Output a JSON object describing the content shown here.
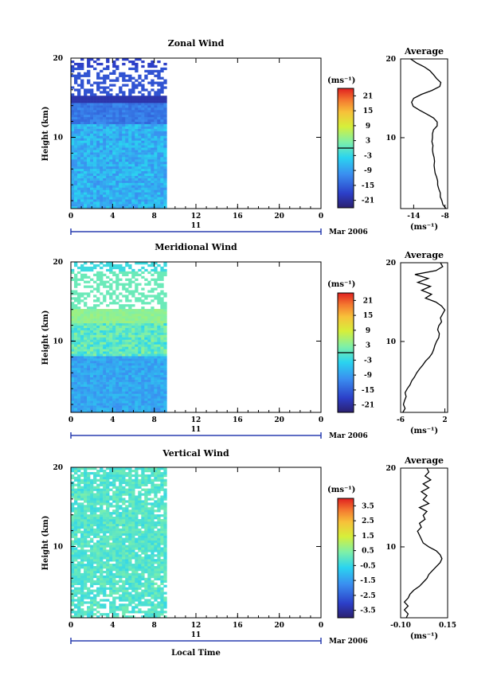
{
  "chart_data": [
    {
      "type": "heatmap",
      "title": "Zonal Wind",
      "ylabel": "Height (km)",
      "xlabel": "",
      "xlim": [
        0,
        24
      ],
      "ylim": [
        1,
        20
      ],
      "x_ticks": [
        "0",
        "4",
        "8",
        "12",
        "16",
        "20",
        "0"
      ],
      "y_ticks": [
        "10",
        "20"
      ],
      "date_day": "11",
      "date_label": "Mar 2006",
      "data_x_range": [
        0,
        9.2
      ],
      "colorbar": {
        "unit": "(ms⁻¹)",
        "range": [
          -24,
          24
        ],
        "ticks": [
          "21",
          "15",
          "9",
          "3",
          "-3",
          "-9",
          "-15",
          "-21"
        ],
        "zero_line": true
      },
      "average": {
        "title": "Average",
        "xlabel": "(ms⁻¹)",
        "x_ticks": [
          "-14",
          "-8"
        ],
        "xlim": [
          -16.5,
          -7.5
        ],
        "y_ticks": [
          "10",
          "20"
        ],
        "profile": [
          [
            1.0,
            -7.8
          ],
          [
            1.5,
            -8.4
          ],
          [
            2.0,
            -8.6
          ],
          [
            2.5,
            -8.9
          ],
          [
            3.0,
            -8.9
          ],
          [
            3.5,
            -9.2
          ],
          [
            4.0,
            -9.4
          ],
          [
            4.5,
            -9.4
          ],
          [
            5.0,
            -9.6
          ],
          [
            5.5,
            -9.9
          ],
          [
            6.0,
            -10.0
          ],
          [
            6.5,
            -10.1
          ],
          [
            7.0,
            -10.0
          ],
          [
            7.5,
            -10.1
          ],
          [
            8.0,
            -10.3
          ],
          [
            8.5,
            -10.4
          ],
          [
            9.0,
            -10.3
          ],
          [
            9.5,
            -10.5
          ],
          [
            10.0,
            -10.4
          ],
          [
            10.5,
            -10.4
          ],
          [
            11.0,
            -10.2
          ],
          [
            11.5,
            -9.5
          ],
          [
            12.0,
            -9.5
          ],
          [
            12.5,
            -10.2
          ],
          [
            13.0,
            -11.5
          ],
          [
            13.5,
            -12.9
          ],
          [
            14.0,
            -14.1
          ],
          [
            14.5,
            -14.4
          ],
          [
            15.0,
            -14.0
          ],
          [
            15.5,
            -12.5
          ],
          [
            16.0,
            -10.5
          ],
          [
            16.5,
            -9.0
          ],
          [
            17.0,
            -8.8
          ],
          [
            17.5,
            -9.6
          ],
          [
            18.0,
            -10.2
          ],
          [
            18.5,
            -10.9
          ],
          [
            19.0,
            -12.0
          ],
          [
            19.5,
            -13.5
          ],
          [
            20.0,
            -14.6
          ]
        ]
      }
    },
    {
      "type": "heatmap",
      "title": "Meridional Wind",
      "ylabel": "Height (km)",
      "xlabel": "",
      "xlim": [
        0,
        24
      ],
      "ylim": [
        1,
        20
      ],
      "x_ticks": [
        "0",
        "4",
        "8",
        "12",
        "16",
        "20",
        "0"
      ],
      "y_ticks": [
        "10",
        "20"
      ],
      "date_day": "11",
      "date_label": "Mar 2006",
      "data_x_range": [
        0,
        9.2
      ],
      "colorbar": {
        "unit": "(ms⁻¹)",
        "range": [
          -24,
          24
        ],
        "ticks": [
          "21",
          "15",
          "9",
          "3",
          "-3",
          "-9",
          "-15",
          "-21"
        ],
        "zero_line": true
      },
      "average": {
        "title": "Average",
        "xlabel": "(ms⁻¹)",
        "x_ticks": [
          "-6",
          "2"
        ],
        "xlim": [
          -6,
          2.5
        ],
        "y_ticks": [
          "10",
          "20"
        ],
        "profile": [
          [
            1.0,
            -5.6
          ],
          [
            1.5,
            -5.2
          ],
          [
            2.0,
            -5.5
          ],
          [
            2.5,
            -5.3
          ],
          [
            3.0,
            -5.0
          ],
          [
            3.5,
            -5.2
          ],
          [
            4.0,
            -4.8
          ],
          [
            4.5,
            -4.3
          ],
          [
            5.0,
            -4.0
          ],
          [
            5.5,
            -3.5
          ],
          [
            6.0,
            -3.1
          ],
          [
            6.5,
            -2.6
          ],
          [
            7.0,
            -2.0
          ],
          [
            7.5,
            -1.5
          ],
          [
            8.0,
            -0.8
          ],
          [
            8.5,
            -0.3
          ],
          [
            9.0,
            0.0
          ],
          [
            9.5,
            0.2
          ],
          [
            10.0,
            0.5
          ],
          [
            10.5,
            0.9
          ],
          [
            11.0,
            1.0
          ],
          [
            11.5,
            0.7
          ],
          [
            12.0,
            0.9
          ],
          [
            12.5,
            1.4
          ],
          [
            13.0,
            1.2
          ],
          [
            13.5,
            1.6
          ],
          [
            14.0,
            2.0
          ],
          [
            14.5,
            1.4
          ],
          [
            15.0,
            0.4
          ],
          [
            15.5,
            -1.5
          ],
          [
            16.0,
            -0.4
          ],
          [
            16.5,
            -2.2
          ],
          [
            17.0,
            -0.6
          ],
          [
            17.5,
            -2.9
          ],
          [
            18.0,
            -1.0
          ],
          [
            18.5,
            -3.4
          ],
          [
            19.0,
            0.4
          ],
          [
            19.5,
            1.6
          ],
          [
            20.0,
            1.2
          ]
        ]
      }
    },
    {
      "type": "heatmap",
      "title": "Vertical Wind",
      "ylabel": "Height (km)",
      "xlabel": "Local Time",
      "xlim": [
        0,
        24
      ],
      "ylim": [
        1,
        20
      ],
      "x_ticks": [
        "0",
        "4",
        "8",
        "12",
        "16",
        "20",
        "0"
      ],
      "y_ticks": [
        "10",
        "20"
      ],
      "date_day": "11",
      "date_label": "Mar 2006",
      "data_x_range": [
        0,
        9.2
      ],
      "colorbar": {
        "unit": "(ms⁻¹)",
        "range": [
          -4,
          4
        ],
        "ticks": [
          "3.5",
          "2.5",
          "1.5",
          "0.5",
          "-0.5",
          "-1.5",
          "-2.5",
          "-3.5"
        ],
        "zero_line": false
      },
      "average": {
        "title": "Average",
        "xlabel": "(ms⁻¹)",
        "x_ticks": [
          "-0.10",
          "0.15"
        ],
        "xlim": [
          -0.1,
          0.15
        ],
        "y_ticks": [
          "10",
          "20"
        ],
        "profile": [
          [
            1.0,
            -0.07
          ],
          [
            1.5,
            -0.06
          ],
          [
            2.0,
            -0.08
          ],
          [
            2.5,
            -0.06
          ],
          [
            3.0,
            -0.08
          ],
          [
            3.5,
            -0.06
          ],
          [
            4.0,
            -0.05
          ],
          [
            4.5,
            -0.03
          ],
          [
            5.0,
            0.0
          ],
          [
            5.5,
            0.02
          ],
          [
            6.0,
            0.04
          ],
          [
            6.5,
            0.05
          ],
          [
            7.0,
            0.07
          ],
          [
            7.5,
            0.09
          ],
          [
            8.0,
            0.11
          ],
          [
            8.5,
            0.12
          ],
          [
            9.0,
            0.11
          ],
          [
            9.5,
            0.09
          ],
          [
            10.0,
            0.05
          ],
          [
            10.5,
            0.02
          ],
          [
            11.0,
            0.01
          ],
          [
            11.5,
            0.0
          ],
          [
            12.0,
            -0.01
          ],
          [
            12.5,
            0.01
          ],
          [
            13.0,
            0.0
          ],
          [
            13.5,
            0.03
          ],
          [
            14.0,
            0.02
          ],
          [
            14.5,
            0.04
          ],
          [
            15.0,
            0.0
          ],
          [
            15.5,
            0.05
          ],
          [
            16.0,
            0.02
          ],
          [
            16.5,
            0.04
          ],
          [
            17.0,
            0.01
          ],
          [
            17.5,
            0.05
          ],
          [
            18.0,
            0.02
          ],
          [
            18.5,
            0.06
          ],
          [
            19.0,
            0.03
          ],
          [
            19.5,
            0.05
          ],
          [
            20.0,
            0.04
          ]
        ]
      }
    }
  ]
}
